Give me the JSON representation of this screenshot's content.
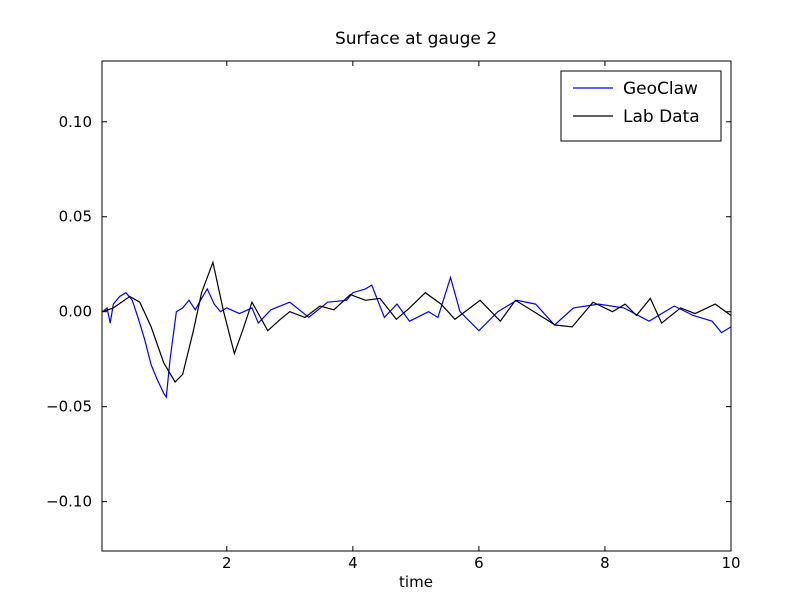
{
  "chart_data": {
    "type": "line",
    "title": "Surface at gauge 2",
    "xlabel": "time",
    "xlim": [
      0.02,
      10
    ],
    "ylim": [
      -0.126,
      0.132
    ],
    "xticks": [
      2,
      4,
      6,
      8,
      10
    ],
    "yticks": [
      {
        "value": -0.1,
        "label": "−0.10"
      },
      {
        "value": -0.05,
        "label": "−0.05"
      },
      {
        "value": 0,
        "label": "0.00"
      },
      {
        "value": 0.05,
        "label": "0.05"
      },
      {
        "value": 0.1,
        "label": "0.10"
      }
    ],
    "legend": "upper right",
    "series": [
      {
        "name": "GeoClaw",
        "color": "#0000ff",
        "x": [
          0.03,
          0.1,
          0.15,
          0.2,
          0.3,
          0.4,
          0.5,
          0.6,
          0.7,
          0.8,
          0.9,
          1.0,
          1.04,
          1.1,
          1.2,
          1.3,
          1.4,
          1.5,
          1.6,
          1.69,
          1.8,
          1.9,
          2.0,
          2.2,
          2.4,
          2.5,
          2.7,
          3.0,
          3.3,
          3.6,
          3.9,
          4.0,
          4.2,
          4.3,
          4.5,
          4.7,
          4.9,
          5.2,
          5.35,
          5.55,
          5.7,
          6.0,
          6.3,
          6.6,
          6.9,
          7.2,
          7.5,
          7.9,
          8.3,
          8.7,
          9.1,
          9.4,
          9.7,
          9.85,
          10
        ],
        "values": [
          0.0,
          0.002,
          -0.006,
          0.004,
          0.008,
          0.01,
          0.006,
          -0.004,
          -0.015,
          -0.028,
          -0.036,
          -0.043,
          -0.045,
          -0.025,
          0.0,
          0.002,
          0.006,
          0.001,
          0.007,
          0.012,
          0.004,
          0.0,
          0.002,
          -0.001,
          0.002,
          -0.006,
          0.001,
          0.005,
          -0.003,
          0.005,
          0.006,
          0.01,
          0.012,
          0.014,
          -0.003,
          0.004,
          -0.005,
          0.0,
          -0.003,
          0.018,
          0.0,
          -0.01,
          0.0,
          0.006,
          0.004,
          -0.007,
          0.002,
          0.004,
          0.002,
          -0.005,
          0.003,
          -0.002,
          -0.005,
          -0.011,
          -0.008
        ]
      },
      {
        "name": "Lab Data",
        "color": "#000000",
        "x": [
          0.03,
          0.2,
          0.46,
          0.62,
          0.8,
          1.0,
          1.18,
          1.3,
          1.47,
          1.6,
          1.78,
          1.95,
          2.12,
          2.25,
          2.4,
          2.65,
          2.85,
          3.0,
          3.24,
          3.48,
          3.7,
          3.96,
          4.2,
          4.43,
          4.69,
          4.9,
          5.15,
          5.4,
          5.62,
          6.02,
          6.34,
          6.58,
          6.97,
          7.21,
          7.48,
          7.81,
          8.12,
          8.32,
          8.5,
          8.72,
          8.9,
          9.2,
          9.43,
          9.75,
          10
        ],
        "values": [
          0.0,
          0.002,
          0.008,
          0.005,
          -0.008,
          -0.027,
          -0.037,
          -0.033,
          -0.01,
          0.01,
          0.026,
          0.0,
          -0.022,
          -0.01,
          0.005,
          -0.01,
          -0.004,
          0.0,
          -0.003,
          0.003,
          0.001,
          0.009,
          0.006,
          0.007,
          -0.004,
          0.002,
          0.01,
          0.004,
          -0.004,
          0.006,
          -0.005,
          0.006,
          -0.002,
          -0.007,
          -0.008,
          0.005,
          0.0,
          0.004,
          -0.002,
          0.007,
          -0.006,
          0.002,
          -0.001,
          0.004,
          -0.002
        ]
      }
    ]
  }
}
